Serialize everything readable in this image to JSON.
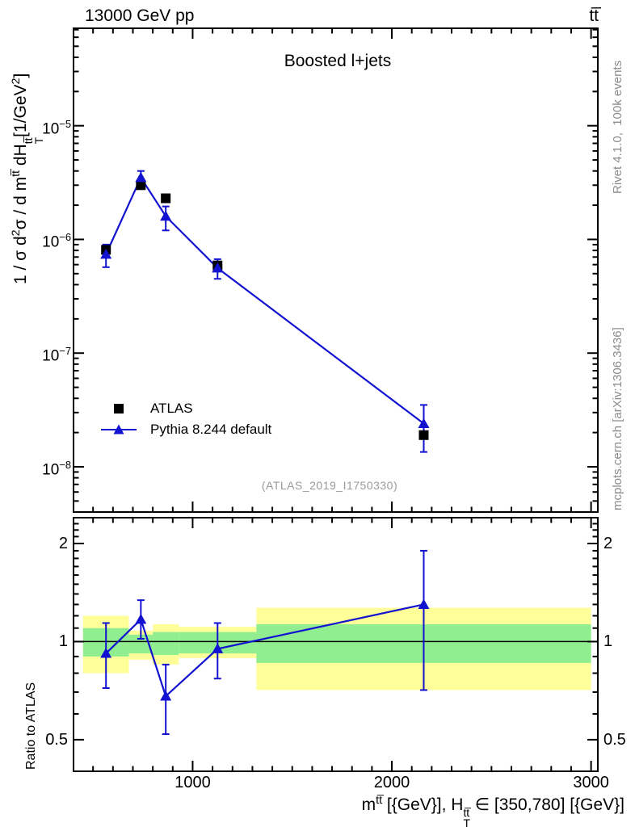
{
  "header": {
    "beam_label": "13000 GeV pp",
    "process_label_html": "tt̅"
  },
  "side_notes": {
    "top_html": "Rivet 4.1.0,&nbsp; 100k events",
    "bottom_html": "mcplots.cern.ch [arXiv:1306.3436]"
  },
  "main_panel": {
    "title": "Boosted l+jets",
    "watermark": "(ATLAS_2019_I1750330)",
    "ylabel_html": "1 / σ d<sup>2</sup>σ / d m<sup>tt̅</sup> dH<span class=\"st\"><span>tt̅</span><span>T</span></span>[1/GeV<sup>2</sup>]",
    "legend": [
      {
        "label": "ATLAS",
        "marker": "square",
        "color": "#000000"
      },
      {
        "label": "Pythia 8.244 default",
        "marker": "triangle-line",
        "color": "#1212d0"
      }
    ]
  },
  "ratio_panel": {
    "ylabel": "Ratio to ATLAS"
  },
  "xaxis": {
    "label_html": "m<sup>tt̅</sup> [{GeV}], H<span class=\"st\"><span>tt̅</span><span>T</span></span> ∈ [350,780] [{GeV}]"
  },
  "colors": {
    "mc_blue": "#1212d0",
    "band_yellow": "#ffff99",
    "band_green": "#90ee90",
    "frame": "#000000",
    "gray_text": "#8c8c8c"
  },
  "chart_data": [
    {
      "type": "scatter",
      "title": "Boosted l+jets",
      "xlabel": "m^tt [{GeV}], H_T^tt in [350,780] [{GeV}]",
      "ylabel": "1/sigma d2sigma/dm^tt dH_T^tt [1/GeV^2]",
      "xscale": "linear",
      "xlim": [
        402,
        3034
      ],
      "yscale": "log",
      "ylim": [
        4e-09,
        7.2e-05
      ],
      "x_major_ticks": [
        1000,
        2000,
        3000
      ],
      "x_minor_step": 100,
      "y_major_ticks": [
        1e-05,
        1e-06,
        1e-07,
        1e-08
      ],
      "grid": false,
      "legend_position": "inside-left-middle",
      "series": [
        {
          "name": "ATLAS",
          "marker": "square",
          "color": "#000000",
          "x": [
            565,
            740,
            865,
            1125,
            2160
          ],
          "y": [
            8.1e-07,
            3e-06,
            2.3e-06,
            5.9e-07,
            1.9e-08
          ]
        },
        {
          "name": "Pythia 8.244 default",
          "marker": "triangle",
          "line": true,
          "color": "#1212d0",
          "x": [
            565,
            740,
            865,
            1125,
            2160
          ],
          "y": [
            7.4e-07,
            3.5e-06,
            1.6e-06,
            5.6e-07,
            2.4e-08
          ],
          "y_err_low": [
            5.7e-07,
            3e-06,
            1.2e-06,
            4.5e-07,
            1.35e-08
          ],
          "y_err_high": [
            9e-07,
            4e-06,
            1.95e-06,
            6.7e-07,
            3.5e-08
          ]
        }
      ]
    },
    {
      "type": "ratio",
      "ylabel": "Ratio to ATLAS",
      "xscale": "linear",
      "xlim": [
        402,
        3034
      ],
      "yscale": "log",
      "ylim": [
        0.4,
        2.4
      ],
      "y_major_ticks": [
        0.5,
        1,
        2
      ],
      "ref_line": 1,
      "bands": {
        "bin_edges": [
          450,
          680,
          800,
          930,
          1320,
          3000
        ],
        "yellow": [
          [
            0.8,
            1.2
          ],
          [
            0.88,
            1.08
          ],
          [
            0.85,
            1.13
          ],
          [
            0.89,
            1.11
          ],
          [
            0.71,
            1.27
          ]
        ],
        "green": [
          [
            0.9,
            1.1
          ],
          [
            0.92,
            1.05
          ],
          [
            0.91,
            1.07
          ],
          [
            0.92,
            1.07
          ],
          [
            0.86,
            1.13
          ]
        ]
      },
      "series": [
        {
          "name": "Pythia 8.244 default / ATLAS",
          "marker": "triangle",
          "line": true,
          "color": "#1212d0",
          "x": [
            565,
            740,
            865,
            1125,
            2160
          ],
          "y": [
            0.92,
            1.17,
            0.68,
            0.95,
            1.3
          ],
          "y_err_low": [
            0.72,
            1.02,
            0.52,
            0.77,
            0.71
          ],
          "y_err_high": [
            1.14,
            1.34,
            0.85,
            1.14,
            1.9
          ]
        }
      ]
    }
  ]
}
